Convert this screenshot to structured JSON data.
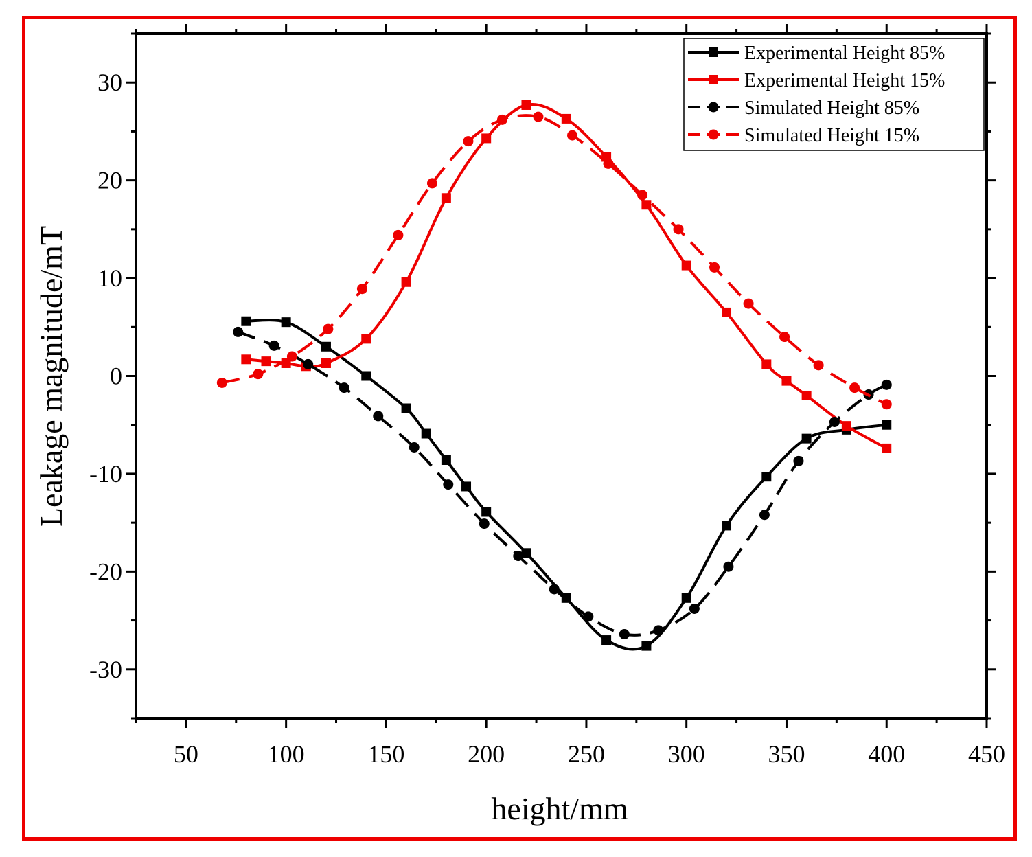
{
  "chart_data": {
    "type": "line",
    "title": "",
    "xlabel": "height/mm",
    "ylabel": "Leakage magnitude/mT",
    "xlim": [
      25,
      450
    ],
    "ylim": [
      -35,
      35
    ],
    "x_ticks": [
      50,
      100,
      150,
      200,
      250,
      300,
      350,
      400,
      450
    ],
    "y_ticks": [
      -30,
      -20,
      -10,
      0,
      10,
      20,
      30
    ],
    "legend_position": "top-right",
    "series": [
      {
        "name": "Experimental Height 85%",
        "color": "#000000",
        "line": "solid",
        "marker": "square",
        "x": [
          80,
          100,
          120,
          140,
          160,
          170,
          180,
          190,
          200,
          220,
          240,
          260,
          280,
          300,
          320,
          340,
          360,
          380,
          400
        ],
        "y": [
          5.6,
          5.5,
          3.0,
          0.0,
          -3.3,
          -5.9,
          -8.6,
          -11.3,
          -13.9,
          -18.1,
          -22.7,
          -27.0,
          -27.6,
          -22.7,
          -15.3,
          -10.3,
          -6.4,
          -5.5,
          -5.0
        ]
      },
      {
        "name": "Experimental Height 15%",
        "color": "#ee0000",
        "line": "solid",
        "marker": "square",
        "x": [
          80,
          90,
          100,
          110,
          120,
          140,
          160,
          180,
          200,
          220,
          240,
          260,
          280,
          300,
          320,
          340,
          350,
          360,
          380,
          400
        ],
        "y": [
          1.7,
          1.5,
          1.3,
          1.0,
          1.3,
          3.8,
          9.6,
          18.2,
          24.3,
          27.7,
          26.3,
          22.4,
          17.5,
          11.3,
          6.5,
          1.2,
          -0.5,
          -2.0,
          -5.1,
          -7.4
        ]
      },
      {
        "name": "Simulated Height 85%",
        "color": "#000000",
        "line": "dashed",
        "marker": "circle",
        "x": [
          76,
          94,
          111,
          129,
          146,
          164,
          181,
          199,
          216,
          234,
          251,
          269,
          286,
          304,
          321,
          339,
          356,
          374,
          391,
          400
        ],
        "y": [
          4.5,
          3.1,
          1.2,
          -1.2,
          -4.1,
          -7.3,
          -11.1,
          -15.1,
          -18.4,
          -21.8,
          -24.6,
          -26.4,
          -26.0,
          -23.8,
          -19.5,
          -14.2,
          -8.7,
          -4.7,
          -1.9,
          -0.9
        ]
      },
      {
        "name": "Simulated Height 15%",
        "color": "#ee0000",
        "line": "dashed",
        "marker": "circle",
        "x": [
          68,
          86,
          103,
          121,
          138,
          156,
          173,
          191,
          208,
          226,
          243,
          261,
          278,
          296,
          314,
          331,
          349,
          366,
          384,
          400
        ],
        "y": [
          -0.7,
          0.2,
          2.0,
          4.8,
          8.9,
          14.4,
          19.7,
          24.0,
          26.2,
          26.5,
          24.6,
          21.7,
          18.5,
          15.0,
          11.1,
          7.4,
          4.0,
          1.1,
          -1.2,
          -2.9
        ]
      }
    ]
  }
}
